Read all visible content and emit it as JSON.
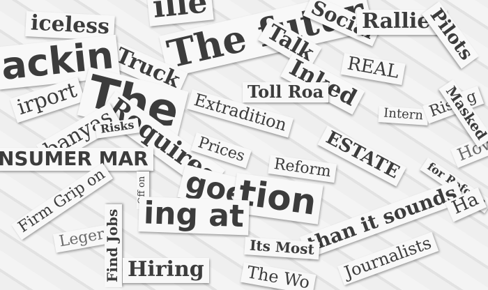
{
  "clippings": [
    "The futur",
    "Social",
    "Rallies",
    "iceless",
    "Truck",
    "Talk",
    "Inked",
    "REAL",
    "ackin",
    "Toll Roa",
    "irport",
    "The",
    "Requires",
    "Extradition",
    "Intern",
    "Rising",
    "banyas",
    "Risks",
    "ESTATE",
    "Prices",
    "NSUMER MAR",
    "Reform",
    "How",
    "for Reform",
    "goe",
    "tion",
    "Off on",
    "Firm Grip on",
    "ing at",
    "than it sounds",
    "Leger",
    "Find Jobs",
    "Its Most",
    "Journalists",
    "Hiring",
    "The Wo",
    "Masked",
    "Pilots",
    "Ha",
    "ille"
  ]
}
